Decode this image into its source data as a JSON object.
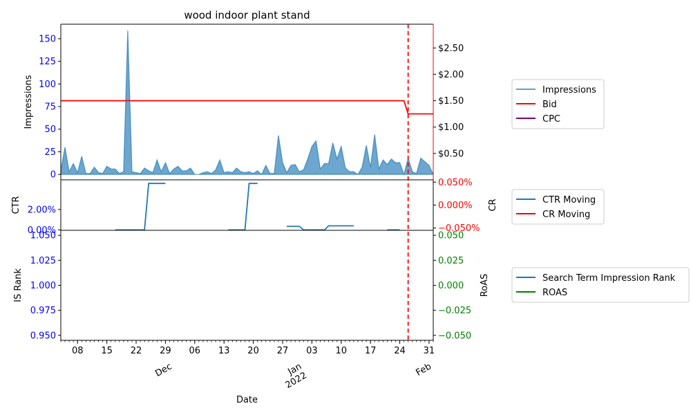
{
  "chart_data": [
    {
      "type": "area",
      "title": "wood indoor plant stand",
      "ylabel": "Impressions",
      "ylabel_right": "",
      "ylim": [
        -6,
        166
      ],
      "y2lim": [
        0,
        2.95
      ],
      "yticks": [
        0,
        25,
        50,
        75,
        100,
        125,
        150
      ],
      "ytick_labels": [
        "0",
        "25",
        "50",
        "75",
        "100",
        "125",
        "150"
      ],
      "y2ticks": [
        0.5,
        1.0,
        1.5,
        2.0,
        2.5
      ],
      "y2tick_labels": [
        "$0.50",
        "$1.00",
        "$1.50",
        "$2.00",
        "$2.50"
      ],
      "legend_position": "right",
      "series": [
        {
          "name": "Impressions",
          "color": "#1f77b4",
          "x": [
            "2021-11-04",
            "2021-11-05",
            "2021-11-06",
            "2021-11-07",
            "2021-11-08",
            "2021-11-09",
            "2021-11-10",
            "2021-11-11",
            "2021-11-12",
            "2021-11-13",
            "2021-11-14",
            "2021-11-15",
            "2021-11-16",
            "2021-11-17",
            "2021-11-18",
            "2021-11-19",
            "2021-11-20",
            "2021-11-21",
            "2021-11-22",
            "2021-11-23",
            "2021-11-24",
            "2021-11-25",
            "2021-11-26",
            "2021-11-27",
            "2021-11-28",
            "2021-11-29",
            "2021-11-30",
            "2021-12-01",
            "2021-12-02",
            "2021-12-03",
            "2021-12-04",
            "2021-12-05",
            "2021-12-06",
            "2021-12-07",
            "2021-12-08",
            "2021-12-09",
            "2021-12-10",
            "2021-12-11",
            "2021-12-12",
            "2021-12-13",
            "2021-12-14",
            "2021-12-15",
            "2021-12-16",
            "2021-12-17",
            "2021-12-18",
            "2021-12-19",
            "2021-12-20",
            "2021-12-21",
            "2021-12-22",
            "2021-12-23",
            "2021-12-24",
            "2021-12-25",
            "2021-12-26",
            "2021-12-27",
            "2021-12-28",
            "2021-12-29",
            "2021-12-30",
            "2021-12-31",
            "2022-01-01",
            "2022-01-02",
            "2022-01-03",
            "2022-01-04",
            "2022-01-05",
            "2022-01-06",
            "2022-01-07",
            "2022-01-08",
            "2022-01-09",
            "2022-01-10",
            "2022-01-11",
            "2022-01-12",
            "2022-01-13",
            "2022-01-14",
            "2022-01-15",
            "2022-01-16",
            "2022-01-17",
            "2022-01-18",
            "2022-01-19",
            "2022-01-20",
            "2022-01-21",
            "2022-01-22",
            "2022-01-23",
            "2022-01-24",
            "2022-01-25",
            "2022-01-26",
            "2022-01-27",
            "2022-01-28",
            "2022-01-29",
            "2022-01-30",
            "2022-01-31",
            "2022-02-01"
          ],
          "values": [
            5,
            30,
            3,
            12,
            2,
            20,
            1,
            1,
            8,
            2,
            1,
            9,
            6,
            6,
            1,
            3,
            159,
            3,
            2,
            1,
            7,
            4,
            2,
            16,
            3,
            13,
            1,
            6,
            9,
            4,
            4,
            7,
            0,
            0,
            2,
            3,
            1,
            5,
            16,
            2,
            3,
            2,
            7,
            3,
            2,
            3,
            1,
            4,
            0,
            10,
            1,
            1,
            43,
            13,
            2,
            10,
            11,
            3,
            5,
            17,
            31,
            37,
            6,
            12,
            12,
            35,
            17,
            31,
            7,
            3,
            3,
            0,
            8,
            32,
            8,
            44,
            6,
            16,
            11,
            17,
            13,
            13,
            0,
            18,
            3,
            1,
            18,
            14,
            10,
            0
          ]
        },
        {
          "name": "Bid",
          "color": "#ff0000",
          "x": [
            "2021-11-04",
            "2022-01-25",
            "2022-01-26",
            "2022-02-01"
          ],
          "values": [
            1.5,
            1.5,
            1.25,
            1.25
          ]
        },
        {
          "name": "CPC",
          "color": "#800080",
          "x": [],
          "values": []
        }
      ],
      "vline": {
        "x": "2022-01-26",
        "color": "#ff0000",
        "style": "dashed"
      }
    },
    {
      "type": "line",
      "ylabel": "CTR",
      "ylabel_right": "CR",
      "ylim": [
        -0.0004,
        0.049
      ],
      "yticks": [
        0,
        0.02
      ],
      "ytick_labels": [
        "0.00%",
        "2.00%"
      ],
      "y2ticks": [
        -0.0005,
        0,
        0.0005
      ],
      "y2tick_labels": [
        "−0.050%",
        "0.000%",
        "0.050%"
      ],
      "legend_position": "right",
      "series": [
        {
          "name": "CTR Moving",
          "color": "#1f77b4",
          "segments": [
            {
              "x": [
                "2021-11-17",
                "2021-11-24",
                "2021-11-25",
                "2021-11-29"
              ],
              "values": [
                0,
                0,
                0.0455,
                0.0455
              ]
            },
            {
              "x": [
                "2021-12-14",
                "2021-12-18",
                "2021-12-19",
                "2021-12-21"
              ],
              "values": [
                0,
                0,
                0.0455,
                0.0455
              ]
            },
            {
              "x": [
                "2021-12-28",
                "2021-12-31",
                "2022-01-01",
                "2022-01-05",
                "2022-01-06",
                "2022-01-07",
                "2022-01-13"
              ],
              "values": [
                0.0035,
                0.0035,
                0,
                0,
                0,
                0.004,
                0.004
              ]
            },
            {
              "x": [
                "2022-01-21",
                "2022-01-24"
              ],
              "values": [
                0,
                0
              ]
            }
          ]
        },
        {
          "name": "CR Moving",
          "color": "#ff0000",
          "segments": []
        }
      ]
    },
    {
      "type": "line",
      "ylabel": "IS Rank",
      "ylabel_right": "RoAS",
      "ylim": [
        0.945,
        1.055
      ],
      "yticks": [
        0.95,
        0.975,
        1.0,
        1.025,
        1.05
      ],
      "ytick_labels": [
        "0.950",
        "0.975",
        "1.000",
        "1.025",
        "1.050"
      ],
      "y2ticks": [
        -0.05,
        -0.025,
        0,
        0.025,
        0.05
      ],
      "y2tick_labels": [
        "−0.050",
        "−0.025",
        "0.000",
        "0.025",
        "0.050"
      ],
      "legend_position": "right",
      "series": [
        {
          "name": "Search Term Impression Rank",
          "color": "#1f77b4",
          "values": []
        },
        {
          "name": "ROAS",
          "color": "#008000",
          "values": []
        }
      ]
    }
  ],
  "x_axis": {
    "label": "Date",
    "day_ticks": [
      {
        "date": "2021-11-08",
        "label": "08"
      },
      {
        "date": "2021-11-15",
        "label": "15"
      },
      {
        "date": "2021-11-22",
        "label": "22"
      },
      {
        "date": "2021-11-29",
        "label": "29"
      },
      {
        "date": "2021-12-06",
        "label": "06"
      },
      {
        "date": "2021-12-13",
        "label": "13"
      },
      {
        "date": "2021-12-20",
        "label": "20"
      },
      {
        "date": "2021-12-27",
        "label": "27"
      },
      {
        "date": "2022-01-03",
        "label": "03"
      },
      {
        "date": "2022-01-10",
        "label": "10"
      },
      {
        "date": "2022-01-17",
        "label": "17"
      },
      {
        "date": "2022-01-24",
        "label": "24"
      },
      {
        "date": "2022-01-31",
        "label": "31"
      }
    ],
    "month_ticks": [
      {
        "date": "2021-12-01",
        "label": "Dec"
      },
      {
        "date": "2022-01-01",
        "label": "Jan\n2022"
      },
      {
        "date": "2022-02-01",
        "label": "Feb"
      }
    ],
    "range": [
      "2021-11-04",
      "2022-02-01"
    ]
  }
}
